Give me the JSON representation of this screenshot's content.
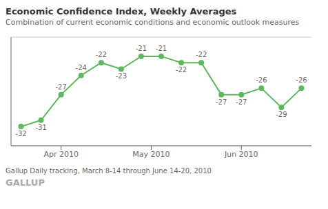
{
  "chart_data": {
    "type": "line",
    "title": "Economic Confidence Index, Weekly Averages",
    "subtitle": "Combination of current economic conditions and economic outlook measures",
    "annotations": [
      "Gallup Daily tracking, March 8-14 through June 14-20, 2010",
      "GALLUP"
    ],
    "x": [
      0,
      1,
      2,
      3,
      4,
      5,
      6,
      7,
      8,
      9,
      10,
      11,
      12,
      13,
      14
    ],
    "values": [
      -32,
      -31,
      -27,
      -24,
      -22,
      -23,
      -21,
      -21,
      -22,
      -22,
      -27,
      -27,
      -26,
      -29,
      -26
    ],
    "color": "#5cb85c",
    "marker": "circle",
    "xlim": [
      -0.5,
      14.5
    ],
    "xticks": [
      {
        "value": 2.0,
        "label": "Apr 2010"
      },
      {
        "value": 6.5,
        "label": "May 2010"
      },
      {
        "value": 11.0,
        "label": "Jun 2010"
      }
    ],
    "ylim": [
      -35,
      -18
    ],
    "yticks": [
      -34,
      -18
    ],
    "grid": true,
    "data_labels": true,
    "tick_labels": "x"
  }
}
